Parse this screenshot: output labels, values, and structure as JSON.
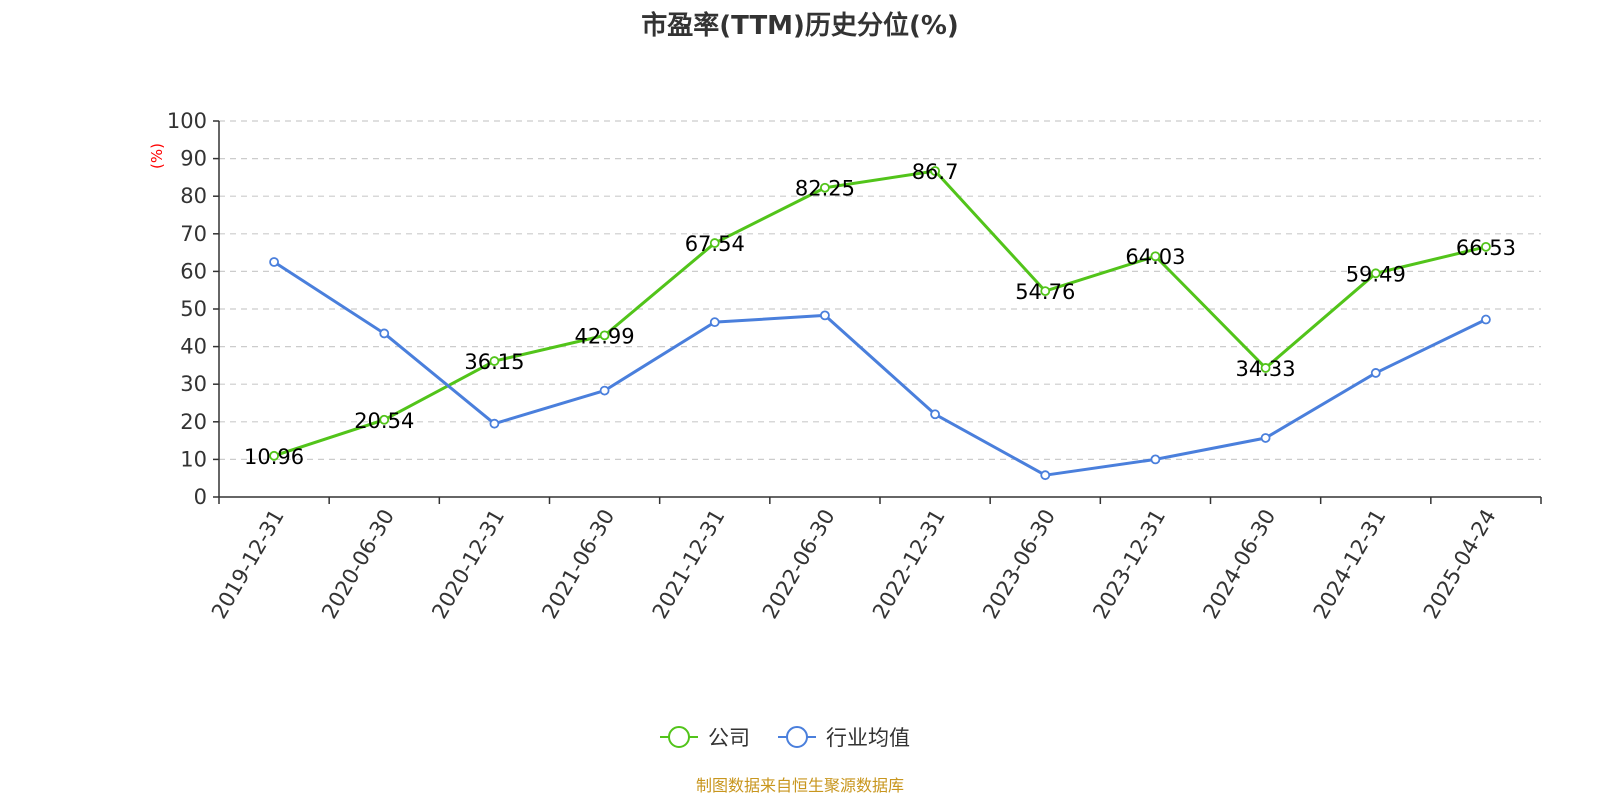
{
  "chart_data": {
    "type": "line",
    "title": "市盈率(TTM)历史分位(%)",
    "y_unit": "(%)",
    "ylim": [
      0,
      100
    ],
    "ytick_step": 10,
    "grid": true,
    "legend_position": "bottom",
    "categories": [
      "2019-12-31",
      "2020-06-30",
      "2020-12-31",
      "2021-06-30",
      "2021-12-31",
      "2022-06-30",
      "2022-12-31",
      "2023-06-30",
      "2023-12-31",
      "2024-06-30",
      "2024-12-31",
      "2025-04-24"
    ],
    "series": [
      {
        "name": "公司",
        "color": "#52c41a",
        "show_labels": true,
        "values": [
          10.96,
          20.54,
          36.15,
          42.99,
          67.54,
          82.25,
          86.7,
          54.76,
          64.03,
          34.33,
          59.49,
          66.53
        ]
      },
      {
        "name": "行业均值",
        "color": "#4a7fdc",
        "show_labels": false,
        "values": [
          62.5,
          43.5,
          19.5,
          28.3,
          46.5,
          48.3,
          22.0,
          5.8,
          10.0,
          15.7,
          33.0,
          47.2
        ]
      }
    ],
    "source": "制图数据来自恒生聚源数据库",
    "colors": {
      "axis": "#333333",
      "grid": "#cccccc",
      "unit": "#ff0000",
      "source": "#c8961e"
    }
  }
}
